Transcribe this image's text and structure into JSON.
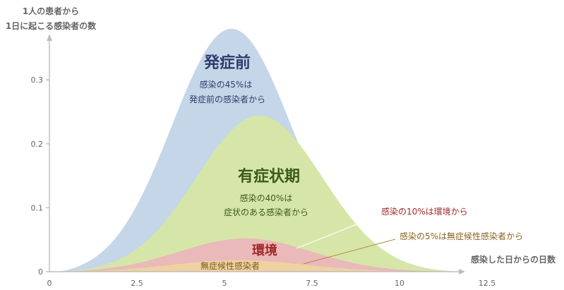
{
  "chart_data": {
    "type": "area",
    "ylabel_lines": [
      "1人の患者から",
      "1日に起こる感染者の数"
    ],
    "xlabel": "感染した日からの日数",
    "xlim": [
      0,
      14.5
    ],
    "ylim": [
      0,
      0.38
    ],
    "x_ticks": [
      0,
      2.5,
      5,
      7.5,
      10,
      12.5
    ],
    "x_tick_labels": [
      "0",
      "2.5",
      "5",
      "7.5",
      "10",
      "12.5"
    ],
    "y_ticks": [
      0,
      0.1,
      0.2,
      0.3
    ],
    "y_tick_labels": [
      "0",
      "0.1",
      "0.2",
      "0.3"
    ],
    "series": [
      {
        "name": "発症前",
        "color": "#c5d6e8",
        "peak_x": 5.2,
        "peak_y": 0.38,
        "sigma": 1.7,
        "label_big": "発症前",
        "label_lines": [
          "感染の45%は",
          "発症前の感染者から"
        ],
        "label_color": "#2c3e6b"
      },
      {
        "name": "有症状期",
        "color": "#d6e6a8",
        "peak_x": 6.0,
        "peak_y": 0.244,
        "sigma": 1.8,
        "label_big": "有症状期",
        "label_lines": [
          "感染の40%は",
          "症状のある感染者から"
        ],
        "label_color": "#3d5a1e"
      },
      {
        "name": "環境",
        "color": "#eab9b9",
        "peak_x": 5.6,
        "peak_y": 0.052,
        "sigma": 1.9,
        "label_big": "環境",
        "label_color": "#a02828"
      },
      {
        "name": "無症候性感染者",
        "color": "#efd2a0",
        "peak_x": 5.4,
        "peak_y": 0.018,
        "sigma": 1.9,
        "label_big": "無症候性感染者",
        "label_color": "#7a5a1e"
      }
    ],
    "callouts": [
      {
        "text": "感染の10%は環境から",
        "color": "#a02828"
      },
      {
        "text": "感染の5%は無症候性感染者から",
        "color": "#8a6420"
      }
    ]
  }
}
